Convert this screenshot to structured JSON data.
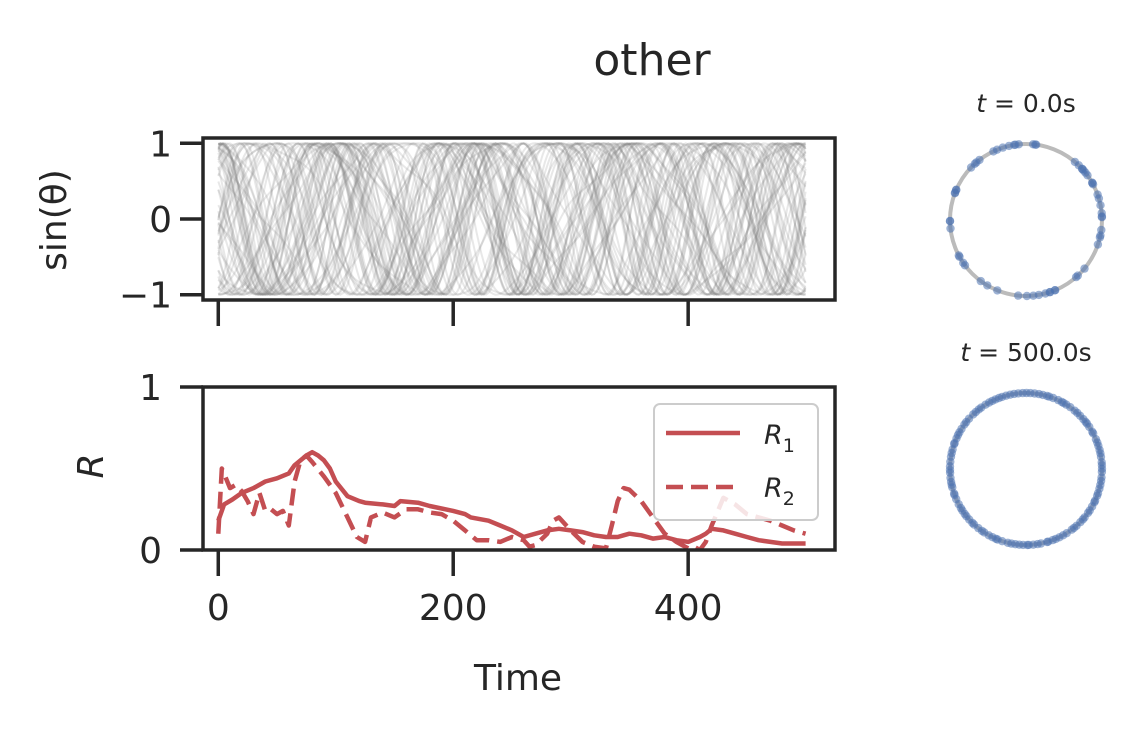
{
  "figure": {
    "title": "other"
  },
  "chart_data": [
    {
      "type": "line",
      "panel": "phase-traces",
      "ylabel": "sin(θ)",
      "xlim": [
        -13,
        525
      ],
      "ylim": [
        -1.07,
        1.07
      ],
      "yticks": [
        -1,
        0,
        1
      ],
      "ytick_labels": [
        "−1",
        "0",
        "1"
      ],
      "xticks": [
        0,
        200,
        400
      ],
      "xtick_labels_visible": false,
      "n_traces": 60,
      "series_color": "#808080",
      "grid": false
    },
    {
      "type": "line",
      "panel": "order-parameters",
      "xlabel": "Time",
      "ylabel": "R",
      "xlim": [
        -13,
        525
      ],
      "ylim": [
        0,
        1
      ],
      "xticks": [
        0,
        200,
        400
      ],
      "xtick_labels": [
        "0",
        "200",
        "400"
      ],
      "yticks": [
        0,
        1
      ],
      "ytick_labels": [
        "0",
        "1"
      ],
      "legend_position": "upper right",
      "grid": false,
      "series": [
        {
          "name": "R1",
          "style": "solid",
          "color": "#c44e52",
          "x": [
            0,
            5,
            12,
            20,
            30,
            40,
            50,
            60,
            65,
            70,
            75,
            80,
            85,
            90,
            95,
            100,
            110,
            120,
            125,
            140,
            150,
            155,
            170,
            180,
            200,
            210,
            215,
            230,
            240,
            250,
            260,
            270,
            280,
            290,
            300,
            310,
            320,
            330,
            340,
            345,
            350,
            360,
            370,
            380,
            390,
            400,
            410,
            415,
            420,
            430,
            440,
            450,
            460,
            470,
            480,
            490,
            500
          ],
          "y": [
            0.18,
            0.28,
            0.31,
            0.35,
            0.38,
            0.42,
            0.44,
            0.47,
            0.52,
            0.55,
            0.58,
            0.6,
            0.58,
            0.55,
            0.5,
            0.42,
            0.33,
            0.3,
            0.29,
            0.28,
            0.27,
            0.3,
            0.29,
            0.27,
            0.24,
            0.22,
            0.2,
            0.18,
            0.15,
            0.12,
            0.08,
            0.1,
            0.12,
            0.13,
            0.12,
            0.11,
            0.09,
            0.08,
            0.08,
            0.09,
            0.1,
            0.09,
            0.07,
            0.08,
            0.06,
            0.05,
            0.08,
            0.1,
            0.13,
            0.12,
            0.1,
            0.08,
            0.06,
            0.05,
            0.04,
            0.04,
            0.04
          ]
        },
        {
          "name": "R2",
          "style": "dashed",
          "color": "#c44e52",
          "x": [
            0,
            3,
            6,
            10,
            15,
            20,
            25,
            30,
            35,
            40,
            45,
            50,
            55,
            60,
            65,
            70,
            75,
            80,
            90,
            100,
            110,
            118,
            125,
            130,
            140,
            150,
            160,
            170,
            180,
            190,
            200,
            210,
            220,
            230,
            240,
            250,
            260,
            265,
            270,
            280,
            285,
            290,
            300,
            310,
            320,
            330,
            335,
            340,
            345,
            350,
            360,
            370,
            380,
            390,
            400,
            405,
            410,
            415,
            420,
            430,
            440,
            450,
            460,
            470,
            480,
            490,
            500
          ],
          "y": [
            0.1,
            0.5,
            0.45,
            0.38,
            0.4,
            0.36,
            0.3,
            0.22,
            0.35,
            0.24,
            0.25,
            0.22,
            0.24,
            0.15,
            0.42,
            0.55,
            0.58,
            0.54,
            0.45,
            0.35,
            0.2,
            0.08,
            0.05,
            0.2,
            0.23,
            0.2,
            0.25,
            0.25,
            0.23,
            0.22,
            0.18,
            0.12,
            0.06,
            0.06,
            0.05,
            0.08,
            0.06,
            0.02,
            0.03,
            0.1,
            0.18,
            0.2,
            0.12,
            0.05,
            0.02,
            0.01,
            0.15,
            0.3,
            0.38,
            0.37,
            0.3,
            0.2,
            0.1,
            0.05,
            0.01,
            0.02,
            0.0,
            0.05,
            0.15,
            0.32,
            0.28,
            0.22,
            0.2,
            0.18,
            0.15,
            0.12,
            0.1
          ]
        }
      ]
    },
    {
      "type": "scatter",
      "panel": "circle-t0",
      "title": "t = 0.0s",
      "n_points": 60,
      "point_color": "#4c72b0",
      "ring_color": "#bbbbbb",
      "distribution": "clustered"
    },
    {
      "type": "scatter",
      "panel": "circle-t500",
      "title": "t = 500.0s",
      "n_points": 120,
      "point_color": "#4c72b0",
      "ring_color": "#bbbbbb",
      "distribution": "uniform"
    }
  ],
  "legend": {
    "entries": [
      {
        "label_base": "R",
        "label_sub": "1",
        "style": "solid"
      },
      {
        "label_base": "R",
        "label_sub": "2",
        "style": "dashed"
      }
    ]
  }
}
